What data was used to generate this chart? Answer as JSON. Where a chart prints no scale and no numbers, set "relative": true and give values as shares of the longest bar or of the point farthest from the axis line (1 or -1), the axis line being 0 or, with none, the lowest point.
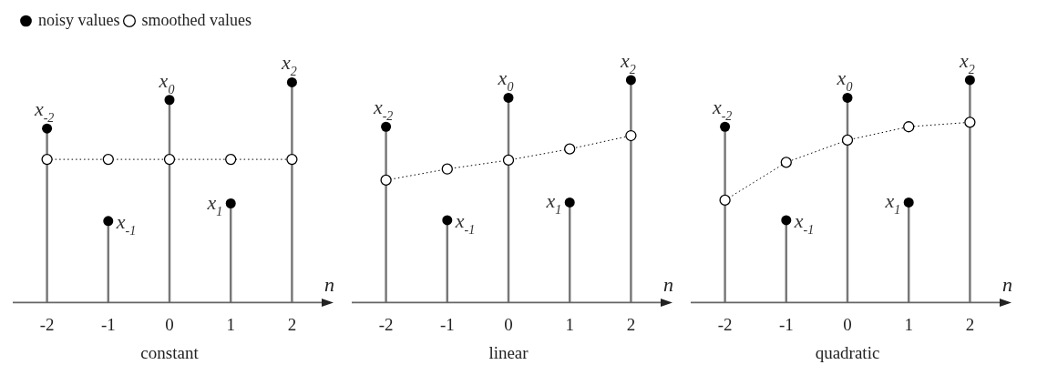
{
  "chart_data": [
    {
      "type": "lollipop",
      "title": "constant",
      "xlabel": "n",
      "categories": [
        "-2",
        "-1",
        "0",
        "1",
        "2"
      ],
      "relative": true,
      "legend": "top left",
      "marker": "circle",
      "series": [
        {
          "name": "noisy values",
          "color": "#000000",
          "values": [
            0.79,
            0.37,
            0.92,
            0.45,
            1
          ]
        },
        {
          "name": "smoothed values",
          "type": "line",
          "color": "#000000",
          "line_style": "dotted",
          "values": [
            0.65,
            0.65,
            0.65,
            0.65,
            0.65
          ]
        }
      ],
      "annotations": [
        {
          "text": "x$_{-2}$",
          "x": "-2",
          "y": 0.79
        },
        {
          "text": "x$_{-1}$",
          "x": "-1",
          "y": 0.37
        },
        {
          "text": "x$_{0}$",
          "x": "0",
          "y": 0.92
        },
        {
          "text": "x$_{1}$",
          "x": "1",
          "y": 0.45
        },
        {
          "text": "x$_{2}$",
          "x": "2",
          "y": 1
        }
      ]
    },
    {
      "type": "lollipop",
      "title": "linear",
      "xlabel": "n",
      "categories": [
        "-2",
        "-1",
        "0",
        "1",
        "2"
      ],
      "relative": true,
      "marker": "circle",
      "series": [
        {
          "color": "#000000",
          "values": [
            0.79,
            0.37,
            0.92,
            0.45,
            1
          ]
        },
        {
          "type": "line",
          "color": "#000000",
          "line_style": "dotted",
          "values": [
            0.55,
            0.6,
            0.64,
            0.69,
            0.75
          ]
        }
      ],
      "annotations": [
        {
          "text": "x$_{-2}$",
          "x": "-2",
          "y": 0.79
        },
        {
          "text": "x$_{-1}$",
          "x": "-1",
          "y": 0.37
        },
        {
          "text": "x$_{0}$",
          "x": "0",
          "y": 0.92
        },
        {
          "text": "x$_{1}$",
          "x": "1",
          "y": 0.45
        },
        {
          "text": "x$_{2}$",
          "x": "2",
          "y": 1
        }
      ]
    },
    {
      "type": "lollipop",
      "title": "quadratic",
      "xlabel": "n",
      "categories": [
        "-2",
        "-1",
        "0",
        "1",
        "2"
      ],
      "relative": true,
      "marker": "circle",
      "series": [
        {
          "color": "#000000",
          "values": [
            0.79,
            0.37,
            0.92,
            0.45,
            1
          ]
        },
        {
          "type": "line",
          "color": "#000000",
          "line_style": "dotted",
          "values": [
            0.46,
            0.63,
            0.73,
            0.79,
            0.81
          ]
        }
      ],
      "annotations": [
        {
          "text": "x$_{-2}$",
          "x": "-2",
          "y": 0.79
        },
        {
          "text": "x$_{-1}$",
          "x": "-1",
          "y": 0.37
        },
        {
          "text": "x$_{0}$",
          "x": "0",
          "y": 0.92
        },
        {
          "text": "x$_{1}$",
          "x": "1",
          "y": 0.45
        },
        {
          "text": "x$_{2}$",
          "x": "2",
          "y": 1
        }
      ]
    }
  ]
}
